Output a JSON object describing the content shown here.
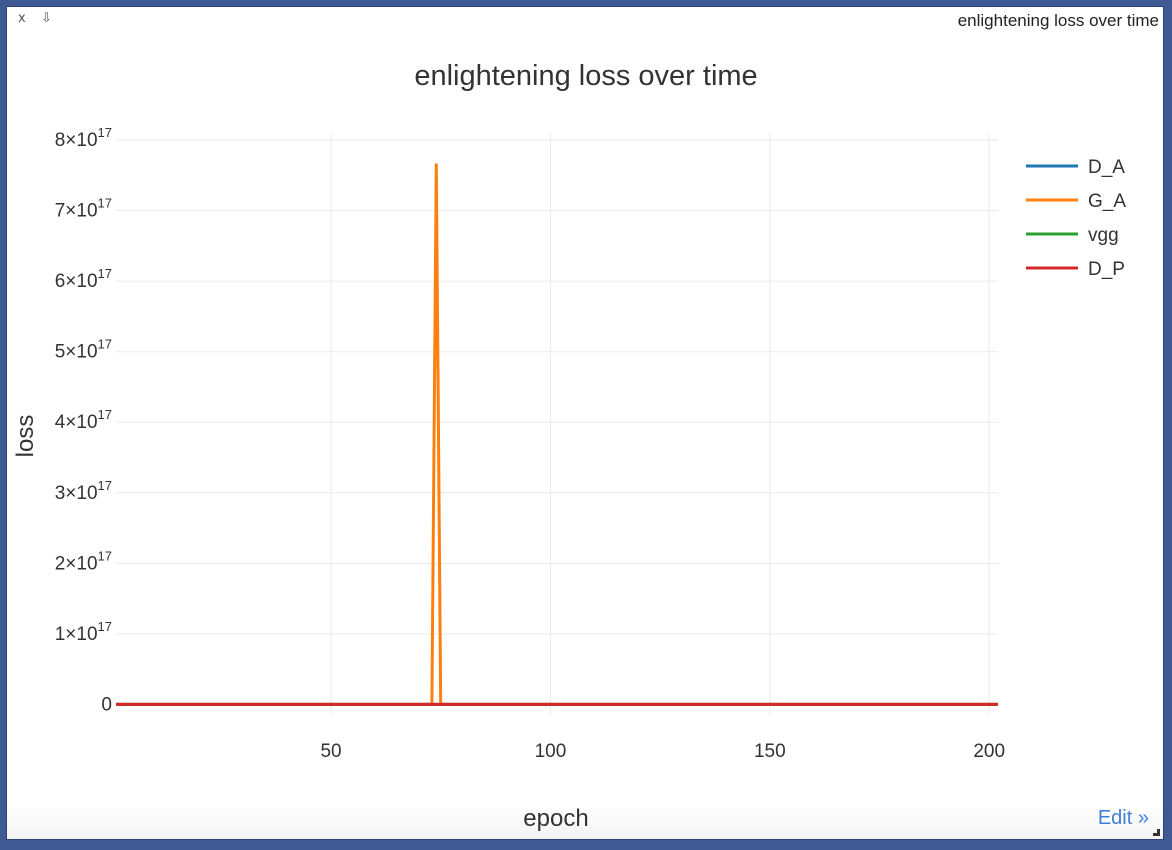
{
  "window": {
    "close_label": "x",
    "download_label": "⇩",
    "title": "enlightening loss over time"
  },
  "chart_data": {
    "type": "line",
    "title": "enlightening loss over time",
    "xlabel": "epoch",
    "ylabel": "loss",
    "xlim": [
      1,
      202
    ],
    "ylim": [
      -1.5e+16,
      8.1e+17
    ],
    "x_ticks": [
      50,
      100,
      150,
      200
    ],
    "x_tick_labels": [
      "50",
      "100",
      "150",
      "200"
    ],
    "y_ticks": [
      0,
      1e+17,
      2e+17,
      3e+17,
      4e+17,
      5e+17,
      6e+17,
      7e+17,
      8e+17
    ],
    "y_tick_labels": [
      {
        "base": "0",
        "exp": ""
      },
      {
        "base": "1×10",
        "exp": "17"
      },
      {
        "base": "2×10",
        "exp": "17"
      },
      {
        "base": "3×10",
        "exp": "17"
      },
      {
        "base": "4×10",
        "exp": "17"
      },
      {
        "base": "5×10",
        "exp": "17"
      },
      {
        "base": "6×10",
        "exp": "17"
      },
      {
        "base": "7×10",
        "exp": "17"
      },
      {
        "base": "8×10",
        "exp": "17"
      }
    ],
    "grid": true,
    "legend_position": "top-right",
    "series": [
      {
        "name": "D_A",
        "color": "#1f77b4",
        "x": [
          1,
          202
        ],
        "y": [
          0,
          0
        ]
      },
      {
        "name": "G_A",
        "color": "#ff7f0e",
        "x": [
          1,
          73,
          74,
          75,
          76,
          202
        ],
        "y": [
          0,
          0,
          7.65e+17,
          0,
          0,
          0
        ]
      },
      {
        "name": "vgg",
        "color": "#2ca02c",
        "x": [
          1,
          202
        ],
        "y": [
          0,
          0
        ]
      },
      {
        "name": "D_P",
        "color": "#d62728",
        "x": [
          1,
          202
        ],
        "y": [
          0,
          0
        ]
      }
    ]
  },
  "edit_link": "Edit »"
}
